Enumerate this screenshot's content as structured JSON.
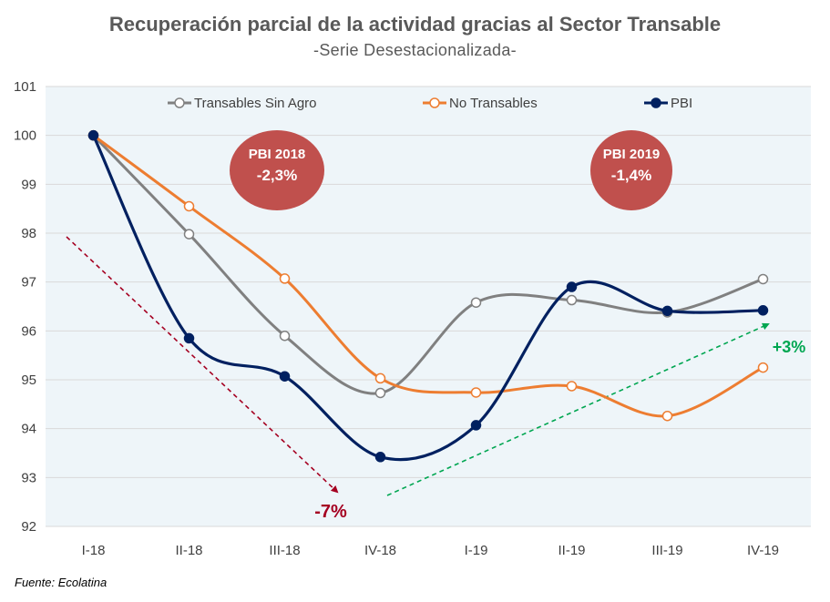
{
  "chart_data": {
    "type": "line",
    "title": "Recuperación parcial de la actividad gracias al Sector Transable",
    "subtitle": "-Serie Desestacionalizada-",
    "categories": [
      "I-18",
      "II-18",
      "III-18",
      "IV-18",
      "I-19",
      "II-19",
      "III-19",
      "IV-19"
    ],
    "ylim": [
      92,
      101
    ],
    "yticks": [
      92,
      93,
      94,
      95,
      96,
      97,
      98,
      99,
      100,
      101
    ],
    "grid": true,
    "legend_position": "top",
    "series": [
      {
        "name": "Transables Sin Agro",
        "color": "#808080",
        "marker": "open",
        "values": [
          100,
          97.98,
          95.9,
          94.73,
          96.58,
          96.63,
          96.38,
          97.06
        ]
      },
      {
        "name": "No Transables",
        "color": "#ED7D31",
        "marker": "open",
        "values": [
          100,
          98.55,
          97.07,
          95.03,
          94.74,
          94.87,
          94.26,
          95.25
        ]
      },
      {
        "name": "PBI",
        "color": "#002060",
        "marker": "filled",
        "values": [
          100,
          95.85,
          95.07,
          93.42,
          94.07,
          96.9,
          96.41,
          96.42
        ]
      }
    ],
    "annotations": {
      "bubble_2018": {
        "line1": "PBI 2018",
        "line2": "-2,3%",
        "color": "#C0504D"
      },
      "bubble_2019": {
        "line1": "PBI 2019",
        "line2": "-1,4%",
        "color": "#C0504D"
      },
      "trend_down": {
        "label": "-7%",
        "color": "#A50021"
      },
      "trend_up": {
        "label": "+3%",
        "color": "#00A651"
      }
    },
    "plot_background": "#EEF5F9"
  },
  "source": "Fuente: Ecolatina"
}
